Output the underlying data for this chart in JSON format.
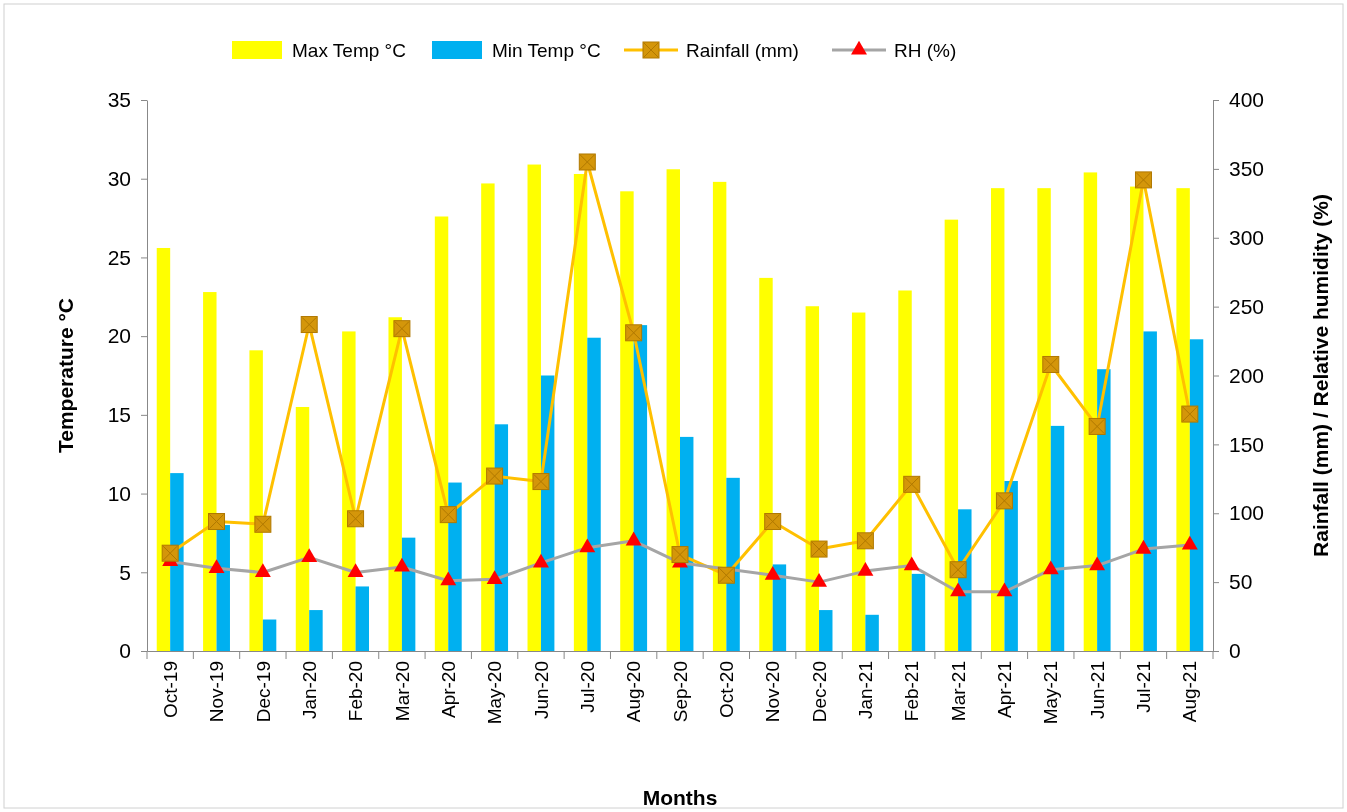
{
  "chart_data": {
    "type": "bar",
    "xlabel": "Months",
    "ylabel": "Temperature °C",
    "y2label": "Rainfall (mm) / Relative humidity (%)",
    "categories": [
      "Oct-19",
      "Nov-19",
      "Dec-19",
      "Jan-20",
      "Feb-20",
      "Mar-20",
      "Apr-20",
      "May-20",
      "Jun-20",
      "Jul-20",
      "Aug-20",
      "Sep-20",
      "Oct-20",
      "Nov-20",
      "Dec-20",
      "Jan-21",
      "Feb-21",
      "Mar-21",
      "Apr-21",
      "May-21",
      "Jun-21",
      "Jul-21",
      "Aug-21"
    ],
    "series": [
      {
        "name": "Max Temp °C",
        "color": "#ffff00",
        "values": [
          25.6,
          22.8,
          19.1,
          15.5,
          20.3,
          21.2,
          27.6,
          29.7,
          30.9,
          30.3,
          29.2,
          30.6,
          29.8,
          23.7,
          21.9,
          21.5,
          22.9,
          27.4,
          29.4,
          29.4,
          30.4,
          29.5,
          29.4
        ]
      },
      {
        "name": "Min Temp °C",
        "color": "#00b0f0",
        "values": [
          11.3,
          8.0,
          2.0,
          2.6,
          4.1,
          7.2,
          10.7,
          14.4,
          17.5,
          19.9,
          20.7,
          13.6,
          11.0,
          5.5,
          2.6,
          2.3,
          4.9,
          9.0,
          10.8,
          14.3,
          17.9,
          20.3,
          19.8
        ]
      },
      {
        "name": "Rainfall (mm)",
        "type": "line",
        "axis": "y2",
        "color": "#ffc000",
        "marker": "square",
        "values": [
          71,
          94,
          92,
          237,
          96,
          234,
          99,
          127,
          123,
          355,
          231,
          70,
          55,
          94,
          74,
          80,
          121,
          59,
          109,
          208,
          163,
          342,
          172
        ]
      },
      {
        "name": "RH (%)",
        "type": "line",
        "axis": "y2",
        "color": "#a5a5a5",
        "marker": "triangle",
        "values": [
          65,
          60,
          57,
          68,
          57,
          61,
          51,
          52,
          64,
          75,
          80,
          64,
          null,
          55,
          50,
          58,
          62,
          43,
          43,
          59,
          62,
          74,
          77
        ]
      }
    ],
    "ylim": [
      0,
      35
    ],
    "yticks": [
      0,
      5,
      10,
      15,
      20,
      25,
      30,
      35
    ],
    "y2lim": [
      0,
      400
    ],
    "y2ticks": [
      0,
      50,
      100,
      150,
      200,
      250,
      300,
      350,
      400
    ],
    "legend": "top",
    "grid": false
  }
}
